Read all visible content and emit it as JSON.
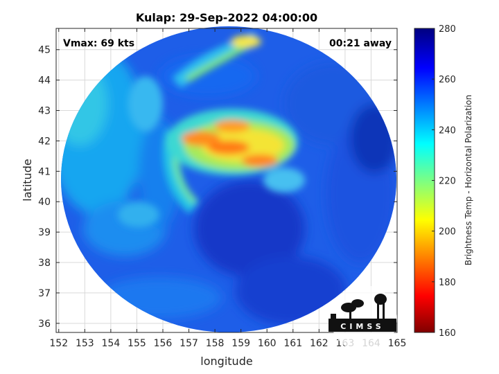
{
  "title": "Kulap: 29-Sep-2022 04:00:00",
  "vmax_label": "Vmax: 69 kts",
  "time_label": "00:21 away",
  "xlabel": "longitude",
  "ylabel": "latitude",
  "colorbar_label": "Brightness Temp - Horizontal Polarization",
  "logo_text": "CIMSS",
  "x_ticks": [
    152,
    153,
    154,
    155,
    156,
    157,
    158,
    159,
    160,
    161,
    162,
    163,
    164,
    165
  ],
  "y_ticks": [
    36,
    37,
    38,
    39,
    40,
    41,
    42,
    43,
    44,
    45
  ],
  "colorbar_ticks": [
    160,
    180,
    200,
    220,
    240,
    260,
    280
  ],
  "xlim": [
    151.9,
    165
  ],
  "ylim": [
    35.7,
    45.7
  ],
  "clim": [
    160,
    280
  ],
  "colormap": "jet",
  "swath_center": [
    158.4,
    40.5
  ],
  "storm_center_estimate": [
    159.0,
    40.6
  ]
}
